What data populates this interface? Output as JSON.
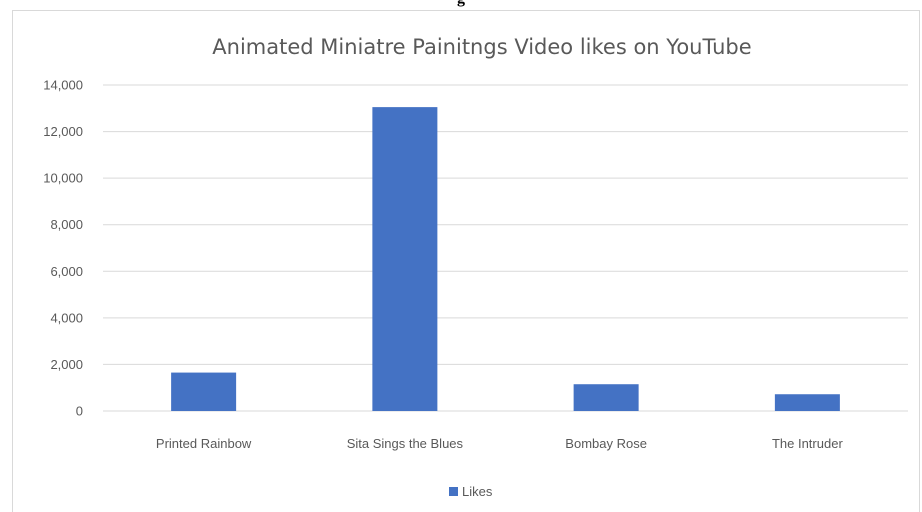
{
  "page": {
    "top_fragment": "g"
  },
  "chart_data": {
    "type": "bar",
    "title": "Animated Miniatre Painitngs Video likes on YouTube",
    "xlabel": "",
    "ylabel": "",
    "categories": [
      "Printed Rainbow",
      "Sita Sings the Blues",
      "Bombay Rose",
      "The Intruder"
    ],
    "series": [
      {
        "name": "Likes",
        "values": [
          1650,
          13050,
          1150,
          720
        ],
        "color": "#4472c4"
      }
    ],
    "ylim": [
      0,
      14000
    ],
    "yticks": [
      0,
      2000,
      4000,
      6000,
      8000,
      10000,
      12000,
      14000
    ],
    "ytick_labels": [
      "0",
      "2,000",
      "4,000",
      "6,000",
      "8,000",
      "10,000",
      "12,000",
      "14,000"
    ],
    "grid": true,
    "grid_color": "#d9d9d9",
    "legend_position": "bottom"
  }
}
